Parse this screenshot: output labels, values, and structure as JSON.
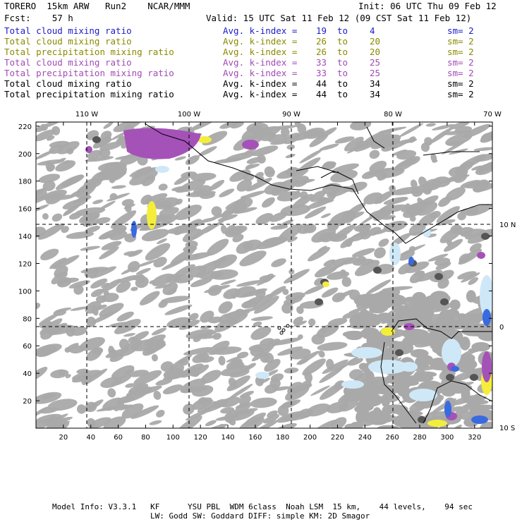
{
  "header": {
    "left1": "TORERO  15km ARW   Run2    NCAR/MMM",
    "init": "Init: 06 UTC Thu 09 Feb 12",
    "fcst": "Fcst:    57 h",
    "valid": "Valid: 15 UTC Sat 11 Feb 12 (09 CST Sat 11 Feb 12)"
  },
  "legend": [
    {
      "field": "Total cloud mixing ratio",
      "kindex": "Avg. k-index =",
      "from": "19",
      "to_word": "to",
      "to": "4",
      "sm": "sm= 2",
      "color": "#1c1cc8",
      "cls": "c-blue"
    },
    {
      "field": "Total cloud mixing ratio",
      "kindex": "Avg. k-index =",
      "from": "26",
      "to_word": "to",
      "to": "20",
      "sm": "sm= 2",
      "color": "#8a8a00",
      "cls": "c-olive"
    },
    {
      "field": "Total precipitation mixing ratio",
      "kindex": "Avg. k-index =",
      "from": "26",
      "to_word": "to",
      "to": "20",
      "sm": "sm= 2",
      "color": "#8a8a00",
      "cls": "c-olive"
    },
    {
      "field": "Total cloud mixing ratio",
      "kindex": "Avg. k-index =",
      "from": "33",
      "to_word": "to",
      "to": "25",
      "sm": "sm= 2",
      "color": "#a24bb4",
      "cls": "c-violet"
    },
    {
      "field": "Total precipitation mixing ratio",
      "kindex": "Avg. k-index =",
      "from": "33",
      "to_word": "to",
      "to": "25",
      "sm": "sm= 2",
      "color": "#a24bb4",
      "cls": "c-violet"
    },
    {
      "field": "Total cloud mixing ratio",
      "kindex": "Avg. k-index =",
      "from": "44",
      "to_word": "to",
      "to": "34",
      "sm": "sm= 2",
      "color": "#000000",
      "cls": "c-black"
    },
    {
      "field": "Total precipitation mixing ratio",
      "kindex": "Avg. k-index =",
      "from": "44",
      "to_word": "to",
      "to": "34",
      "sm": "sm= 2",
      "color": "#000000",
      "cls": "c-black"
    }
  ],
  "map": {
    "x_ticks": [
      "20",
      "40",
      "60",
      "80",
      "100",
      "120",
      "140",
      "160",
      "180",
      "200",
      "220",
      "240",
      "260",
      "280",
      "300",
      "320"
    ],
    "y_ticks": [
      "20",
      "40",
      "60",
      "80",
      "100",
      "120",
      "140",
      "160",
      "180",
      "200",
      "220"
    ],
    "lon_labels": [
      "110 W",
      "100 W",
      "90 W",
      "80 W",
      "70 W"
    ],
    "lat_labels": [
      "10 N",
      "0",
      "10 S"
    ],
    "colors": {
      "cloud_gray": "#a9a9a9",
      "cloud_dark": "#555555",
      "light_blue": "#cfe8f7",
      "blue": "#3a6ae0",
      "yellow": "#f4ee3a",
      "violet": "#a552b8"
    }
  },
  "footer": {
    "line1": "Model Info: V3.3.1   KF      YSU PBL  WDM 6class  Noah LSM  15 km,    44 levels,    94 sec",
    "line2": "LW: Godd SW: Goddard DIFF: simple KM: 2D Smagor"
  }
}
